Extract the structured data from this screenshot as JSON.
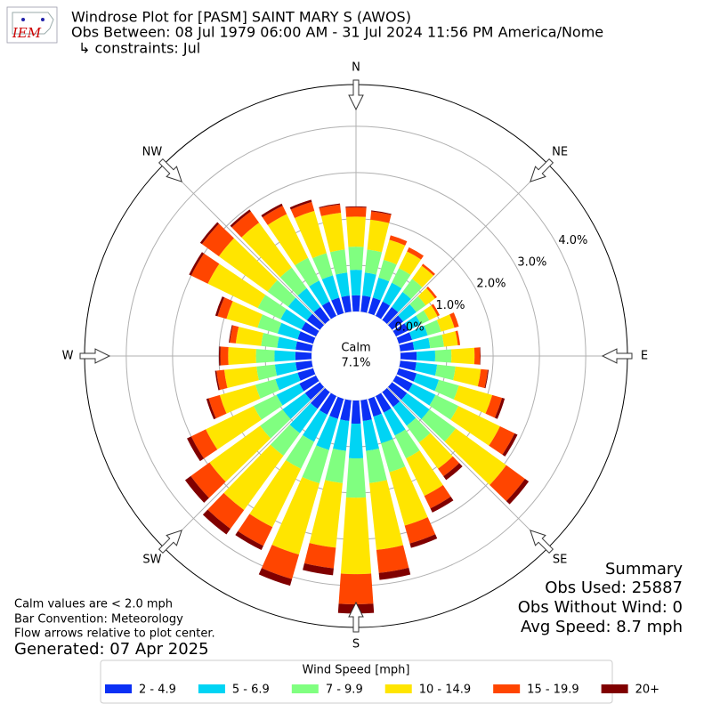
{
  "chart_data": {
    "type": "windrose",
    "title": "Windrose Plot for [PASM] SAINT MARY S (AWOS)",
    "subtitle": "Obs Between: 08 Jul 1979 06:00 AM - 31 Jul 2024 11:56 PM America/Nome",
    "constraints": "↳ constraints: Jul",
    "logo_text": "IEM",
    "x": [
      0,
      10,
      20,
      30,
      40,
      50,
      60,
      70,
      80,
      90,
      100,
      110,
      120,
      130,
      140,
      150,
      160,
      170,
      180,
      190,
      200,
      210,
      220,
      230,
      240,
      250,
      260,
      270,
      280,
      290,
      300,
      310,
      320,
      330,
      340,
      350
    ],
    "series": [
      {
        "name": "2 - 4.9",
        "color": "#0b30f5",
        "values": [
          0.35,
          0.35,
          0.35,
          0.35,
          0.35,
          0.3,
          0.3,
          0.3,
          0.3,
          0.35,
          0.35,
          0.4,
          0.4,
          0.4,
          0.4,
          0.4,
          0.4,
          0.45,
          0.5,
          0.45,
          0.45,
          0.45,
          0.45,
          0.4,
          0.4,
          0.35,
          0.35,
          0.35,
          0.35,
          0.35,
          0.35,
          0.35,
          0.35,
          0.35,
          0.35,
          0.35
        ]
      },
      {
        "name": "5 - 6.9",
        "color": "#00d4f4",
        "values": [
          0.55,
          0.5,
          0.45,
          0.45,
          0.4,
          0.35,
          0.3,
          0.35,
          0.35,
          0.4,
          0.45,
          0.5,
          0.55,
          0.6,
          0.5,
          0.55,
          0.6,
          0.65,
          0.75,
          0.65,
          0.7,
          0.65,
          0.65,
          0.6,
          0.55,
          0.5,
          0.45,
          0.45,
          0.4,
          0.45,
          0.5,
          0.5,
          0.5,
          0.5,
          0.5,
          0.5
        ]
      },
      {
        "name": "7 - 9.9",
        "color": "#80ff80",
        "values": [
          0.5,
          0.5,
          0.4,
          0.35,
          0.35,
          0.25,
          0.2,
          0.3,
          0.3,
          0.35,
          0.4,
          0.45,
          0.55,
          0.7,
          0.45,
          0.55,
          0.65,
          0.7,
          0.85,
          0.7,
          0.75,
          0.65,
          0.6,
          0.6,
          0.55,
          0.45,
          0.4,
          0.4,
          0.35,
          0.45,
          0.55,
          0.55,
          0.55,
          0.55,
          0.5,
          0.5
        ]
      },
      {
        "name": "10 - 14.9",
        "color": "#ffe500",
        "values": [
          0.65,
          0.65,
          0.45,
          0.4,
          0.35,
          0.25,
          0.2,
          0.3,
          0.3,
          0.5,
          0.55,
          0.75,
          1.0,
          1.35,
          0.7,
          0.9,
          1.2,
          1.45,
          1.65,
          1.4,
          1.6,
          1.4,
          1.45,
          1.35,
          1.15,
          0.8,
          0.7,
          0.6,
          0.55,
          0.7,
          1.2,
          1.3,
          1.2,
          1.05,
          0.95,
          0.8
        ]
      },
      {
        "name": "15 - 19.9",
        "color": "#ff4500",
        "values": [
          0.2,
          0.18,
          0.1,
          0.1,
          0.05,
          0.05,
          0.05,
          0.1,
          0.05,
          0.12,
          0.15,
          0.22,
          0.35,
          0.5,
          0.2,
          0.3,
          0.4,
          0.5,
          0.65,
          0.45,
          0.55,
          0.45,
          0.5,
          0.5,
          0.35,
          0.25,
          0.17,
          0.17,
          0.13,
          0.2,
          0.4,
          0.45,
          0.3,
          0.2,
          0.2,
          0.18
        ]
      },
      {
        "name": "20+",
        "color": "#800000",
        "values": [
          0.02,
          0.02,
          0,
          0,
          0,
          0,
          0,
          0,
          0,
          0.01,
          0.02,
          0.06,
          0.07,
          0.1,
          0.1,
          0.1,
          0.1,
          0.15,
          0.2,
          0.15,
          0.15,
          0.1,
          0.15,
          0.15,
          0.1,
          0.05,
          0.03,
          0.03,
          0.02,
          0.05,
          0.05,
          0.05,
          0.05,
          0.05,
          0.05,
          0.02
        ]
      }
    ],
    "ylim": [
      0,
      4.9
    ],
    "yticks": [
      {
        "value": 0,
        "label": "0.0%"
      },
      {
        "value": 1,
        "label": "1.0%"
      },
      {
        "value": 2,
        "label": "2.0%"
      },
      {
        "value": 3,
        "label": "3.0%"
      },
      {
        "value": 4,
        "label": "4.0%"
      }
    ],
    "xticks": [
      {
        "value": 0,
        "label": "N"
      },
      {
        "value": 45,
        "label": "NE"
      },
      {
        "value": 90,
        "label": "E"
      },
      {
        "value": 135,
        "label": "SE"
      },
      {
        "value": 180,
        "label": "S"
      },
      {
        "value": 225,
        "label": "SW"
      },
      {
        "value": 270,
        "label": "W"
      },
      {
        "value": 315,
        "label": "NW"
      }
    ],
    "grid": true,
    "calm": {
      "label": "Calm",
      "value": 7.1,
      "value_label": "7.1%"
    },
    "legend_title": "Wind Speed [mph]",
    "notes": [
      "Calm values are < 2.0 mph",
      "Bar Convention: Meteorology",
      "Flow arrows relative to plot center."
    ],
    "generated": "Generated: 07 Apr 2025",
    "summary": [
      "Summary",
      "Obs Used: 25887",
      "Obs Without Wind: 0",
      "Avg Speed: 8.7 mph"
    ]
  }
}
